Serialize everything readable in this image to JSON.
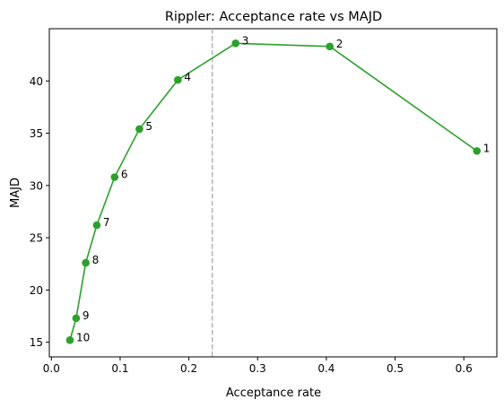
{
  "chart_data": {
    "type": "line",
    "title": "Rippler: Acceptance rate vs MAJD",
    "xlabel": "Acceptance rate",
    "ylabel": "MAJD",
    "xlim": [
      -0.003,
      0.648
    ],
    "ylim": [
      13.6,
      45.0
    ],
    "xticks": [
      0.0,
      0.1,
      0.2,
      0.3,
      0.4,
      0.5,
      0.6
    ],
    "xtick_labels": [
      "0.0",
      "0.1",
      "0.2",
      "0.3",
      "0.4",
      "0.5",
      "0.6"
    ],
    "yticks": [
      15,
      20,
      25,
      30,
      35,
      40
    ],
    "ytick_labels": [
      "15",
      "20",
      "25",
      "30",
      "35",
      "40"
    ],
    "grid": false,
    "reference_line": {
      "orientation": "vertical",
      "x": 0.234,
      "style": "dashed",
      "color": "#b3b3b3"
    },
    "series": [
      {
        "color": "#2ca02c",
        "marker": "circle",
        "points": [
          {
            "x": 0.619,
            "y": 33.3,
            "label": "1"
          },
          {
            "x": 0.405,
            "y": 43.3,
            "label": "2"
          },
          {
            "x": 0.268,
            "y": 43.6,
            "label": "3"
          },
          {
            "x": 0.184,
            "y": 40.1,
            "label": "4"
          },
          {
            "x": 0.128,
            "y": 35.4,
            "label": "5"
          },
          {
            "x": 0.092,
            "y": 30.8,
            "label": "6"
          },
          {
            "x": 0.066,
            "y": 26.2,
            "label": "7"
          },
          {
            "x": 0.05,
            "y": 22.6,
            "label": "8"
          },
          {
            "x": 0.036,
            "y": 17.3,
            "label": "9"
          },
          {
            "x": 0.027,
            "y": 15.2,
            "label": "10"
          }
        ]
      }
    ]
  }
}
